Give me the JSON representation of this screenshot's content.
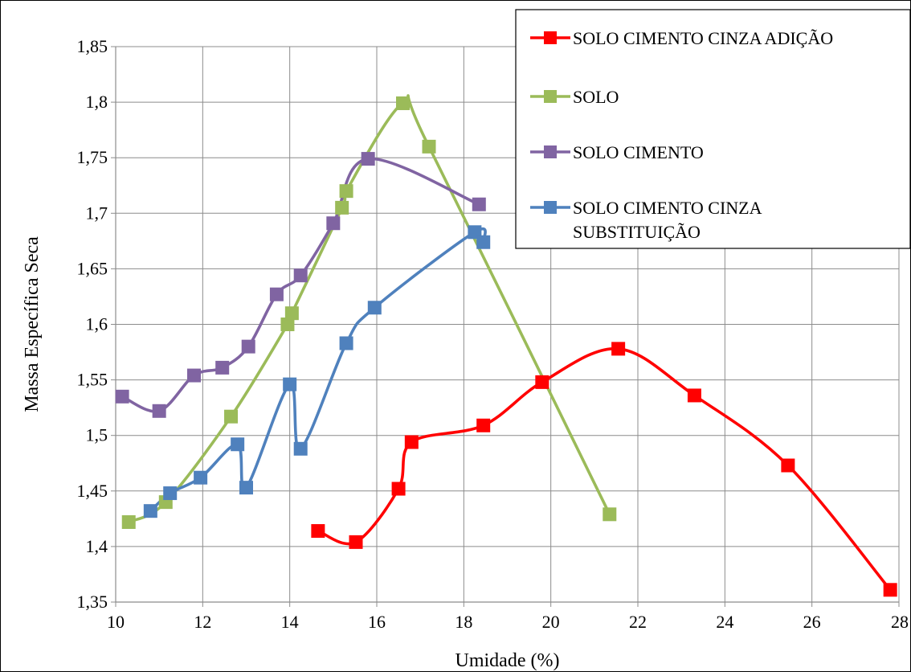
{
  "chart_data": {
    "type": "line",
    "title": "",
    "xlabel": "Umidade (%)",
    "ylabel": "Massa Específica Seca",
    "xlim": [
      10,
      28
    ],
    "ylim": [
      1.35,
      1.85
    ],
    "x_ticks": [
      10,
      12,
      14,
      16,
      18,
      20,
      22,
      24,
      26,
      28
    ],
    "x_tick_labels": [
      "10",
      "12",
      "14",
      "16",
      "18",
      "20",
      "22",
      "24",
      "26",
      "28"
    ],
    "y_ticks": [
      1.35,
      1.4,
      1.45,
      1.5,
      1.55,
      1.6,
      1.65,
      1.7,
      1.75,
      1.8,
      1.85
    ],
    "y_tick_labels": [
      "1,35",
      "1,4",
      "1,45",
      "1,5",
      "1,55",
      "1,6",
      "1,65",
      "1,7",
      "1,75",
      "1,8",
      "1,85"
    ],
    "grid": true,
    "legend_position": "top-right",
    "series": [
      {
        "name": "SOLO CIMENTO CINZA ADIÇÃO",
        "color": "#ff0000",
        "marker_color": "#ff0000",
        "points": [
          [
            14.65,
            1.414
          ],
          [
            15.52,
            1.404
          ],
          [
            16.5,
            1.452
          ],
          [
            16.8,
            1.494
          ],
          [
            18.45,
            1.509
          ],
          [
            19.8,
            1.548
          ],
          [
            21.55,
            1.578
          ],
          [
            23.3,
            1.536
          ],
          [
            25.45,
            1.473
          ],
          [
            27.8,
            1.361
          ]
        ]
      },
      {
        "name": "SOLO",
        "color": "#9bbb59",
        "marker_color": "#9bbb59",
        "points": [
          [
            10.3,
            1.422
          ],
          [
            11.15,
            1.44
          ],
          [
            12.65,
            1.517
          ],
          [
            13.95,
            1.6
          ],
          [
            14.05,
            1.61
          ],
          [
            15.2,
            1.705
          ],
          [
            15.3,
            1.72
          ],
          [
            16.6,
            1.799
          ],
          [
            17.2,
            1.76
          ],
          [
            21.35,
            1.429
          ]
        ]
      },
      {
        "name": "SOLO CIMENTO",
        "color": "#8064a2",
        "marker_color": "#8064a2",
        "points": [
          [
            10.15,
            1.535
          ],
          [
            11.0,
            1.522
          ],
          [
            11.8,
            1.554
          ],
          [
            12.45,
            1.561
          ],
          [
            13.05,
            1.58
          ],
          [
            13.7,
            1.627
          ],
          [
            14.25,
            1.644
          ],
          [
            15.0,
            1.691
          ],
          [
            15.8,
            1.749
          ],
          [
            18.35,
            1.708
          ]
        ]
      },
      {
        "name": "SOLO CIMENTO CINZA SUBSTITUIÇÃO",
        "name_lines": [
          "SOLO CIMENTO CINZA",
          "SUBSTITUIÇÃO"
        ],
        "color": "#4f81bd",
        "marker_color": "#4f81bd",
        "points": [
          [
            10.8,
            1.432
          ],
          [
            11.25,
            1.448
          ],
          [
            11.95,
            1.462
          ],
          [
            12.8,
            1.492
          ],
          [
            13.0,
            1.453
          ],
          [
            14.0,
            1.546
          ],
          [
            14.25,
            1.488
          ],
          [
            15.3,
            1.583
          ],
          [
            15.95,
            1.615
          ],
          [
            18.25,
            1.683
          ],
          [
            18.45,
            1.674
          ]
        ]
      }
    ]
  }
}
